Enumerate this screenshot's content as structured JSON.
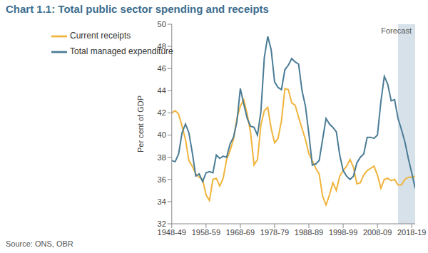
{
  "chart_data": {
    "type": "line",
    "title": "Chart 1.1: Total public sector spending and receipts",
    "ylabel": "Per cent of GDP",
    "source": "Source: ONS, OBR",
    "forecast": {
      "label": "Forecast",
      "x": [
        2014,
        2019
      ]
    },
    "x": [
      1948,
      1949,
      1950,
      1951,
      1952,
      1953,
      1954,
      1955,
      1956,
      1957,
      1958,
      1959,
      1960,
      1961,
      1962,
      1963,
      1964,
      1965,
      1966,
      1967,
      1968,
      1969,
      1970,
      1971,
      1972,
      1973,
      1974,
      1975,
      1976,
      1977,
      1978,
      1979,
      1980,
      1981,
      1982,
      1983,
      1984,
      1985,
      1986,
      1987,
      1988,
      1989,
      1990,
      1991,
      1992,
      1993,
      1994,
      1995,
      1996,
      1997,
      1998,
      1999,
      2000,
      2001,
      2002,
      2003,
      2004,
      2005,
      2006,
      2007,
      2008,
      2009,
      2010,
      2011,
      2012,
      2013,
      2014,
      2015,
      2016,
      2017,
      2018,
      2019
    ],
    "series": [
      {
        "name": "Current receipts",
        "color": "#f0b43c",
        "values": [
          42.0,
          42.2,
          41.9,
          40.8,
          39.6,
          37.7,
          37.2,
          36.5,
          36.2,
          36.0,
          34.6,
          34.1,
          36.0,
          36.1,
          35.4,
          36.1,
          37.8,
          38.6,
          39.6,
          41.5,
          42.6,
          43.2,
          41.9,
          40.2,
          37.3,
          37.8,
          40.9,
          42.2,
          42.5,
          40.6,
          39.3,
          39.7,
          41.3,
          44.2,
          44.1,
          42.9,
          42.7,
          41.6,
          40.6,
          39.6,
          38.3,
          37.7,
          37.0,
          36.5,
          34.5,
          33.7,
          34.6,
          35.7,
          35.0,
          36.3,
          36.8,
          37.2,
          37.8,
          37.1,
          35.6,
          35.7,
          36.4,
          36.8,
          37.0,
          37.2,
          36.4,
          35.2,
          36.0,
          36.1,
          35.9,
          36.0,
          35.5,
          35.5,
          36.0,
          36.2,
          36.2,
          36.3
        ]
      },
      {
        "name": "Total managed expenditure",
        "color": "#4a7c96",
        "values": [
          37.7,
          37.6,
          38.3,
          40.2,
          41.0,
          40.2,
          38.4,
          36.3,
          36.5,
          35.8,
          36.6,
          36.7,
          36.6,
          38.2,
          37.9,
          38.1,
          38.0,
          39.2,
          39.8,
          41.2,
          44.2,
          42.8,
          41.5,
          40.8,
          40.7,
          40.0,
          42.1,
          47.0,
          48.9,
          47.7,
          44.8,
          44.3,
          44.1,
          45.9,
          46.3,
          46.9,
          46.6,
          46.4,
          44.0,
          42.6,
          40.1,
          37.3,
          37.4,
          37.7,
          39.6,
          41.5,
          41.0,
          40.7,
          40.3,
          38.2,
          36.8,
          36.3,
          36.0,
          36.3,
          37.5,
          38.0,
          38.3,
          39.8,
          39.8,
          39.7,
          40.0,
          43.0,
          45.3,
          44.6,
          43.1,
          43.2,
          41.5,
          40.5,
          39.4,
          37.9,
          36.6,
          35.2
        ]
      }
    ],
    "xlim": [
      1948,
      2019
    ],
    "xticks": [
      {
        "value": 1948,
        "label": "1948-49"
      },
      {
        "value": 1958,
        "label": "1958-59"
      },
      {
        "value": 1968,
        "label": "1968-69"
      },
      {
        "value": 1978,
        "label": "1978-79"
      },
      {
        "value": 1988,
        "label": "1988-89"
      },
      {
        "value": 1998,
        "label": "1998-99"
      },
      {
        "value": 2008,
        "label": "2008-09"
      },
      {
        "value": 2018,
        "label": "2018-19"
      }
    ],
    "ylim": [
      32,
      50
    ],
    "yticks": [
      32,
      34,
      36,
      38,
      40,
      42,
      44,
      46,
      48,
      50
    ],
    "grid": false,
    "legend": "upper left"
  }
}
